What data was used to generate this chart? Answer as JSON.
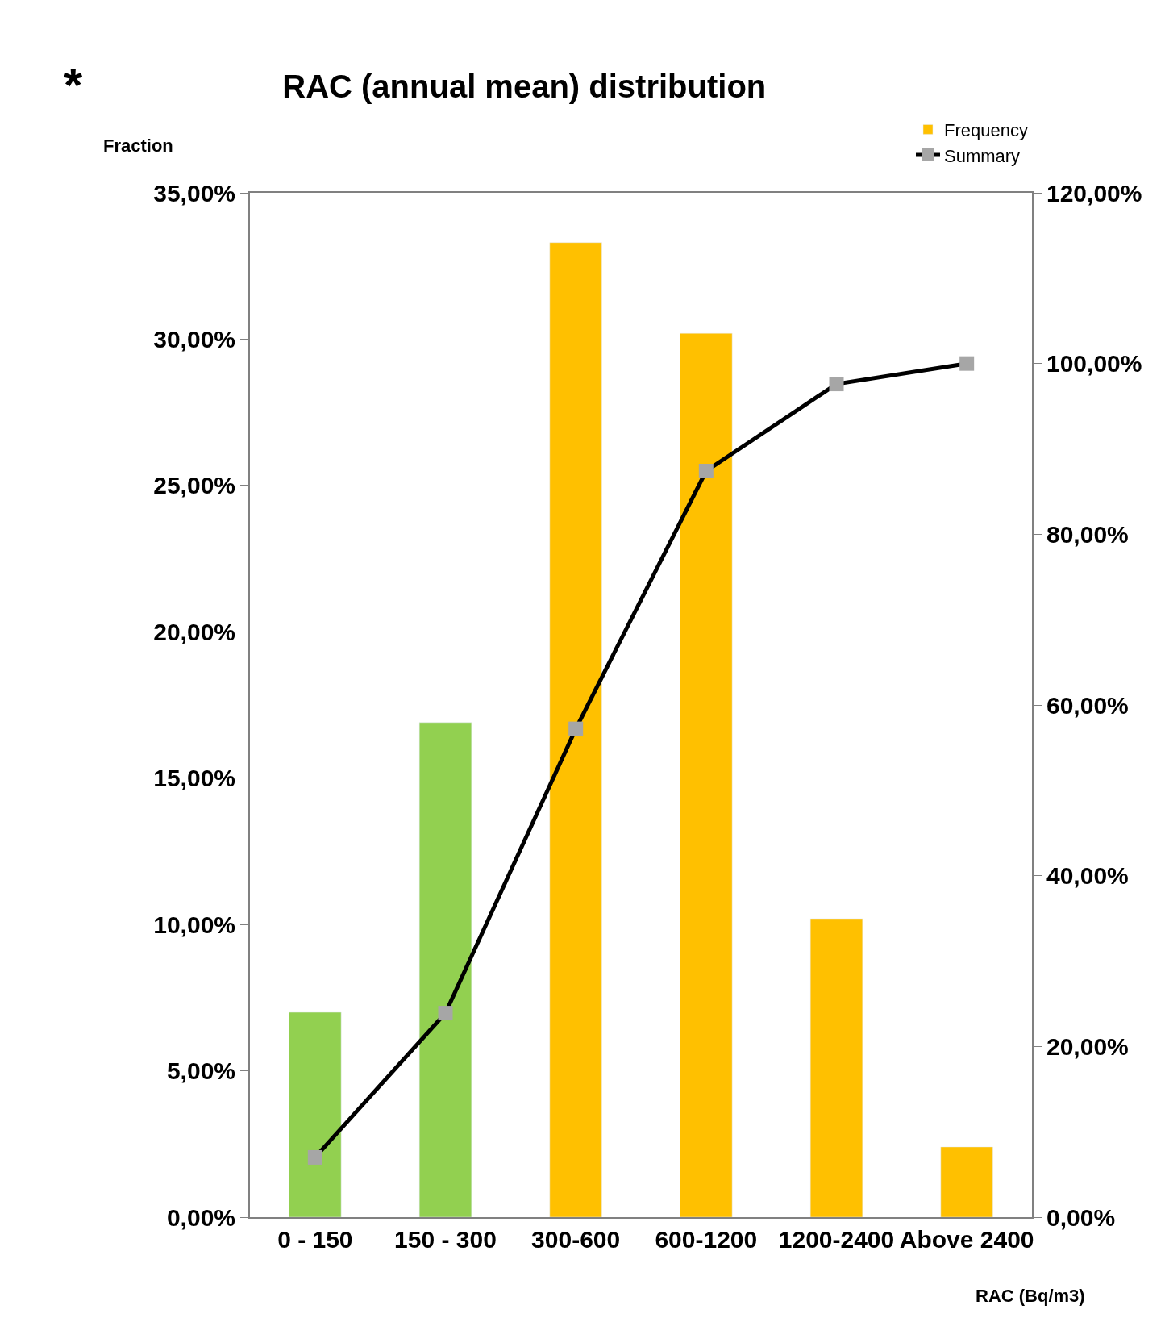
{
  "chart_data": {
    "type": "bar",
    "title": "RAC (annual mean) distribution",
    "ylabel": "Fraction",
    "xlabel": "RAC (Bq/m3)",
    "annotations": [
      "*"
    ],
    "categories": [
      "0 - 150",
      "150 - 300",
      "300-600",
      "600-1200",
      "1200-2400",
      "Above 2400"
    ],
    "series": [
      {
        "name": "Frequency",
        "color": "#ffc000",
        "colors": [
          "#92d050",
          "#92d050",
          "#ffc000",
          "#ffc000",
          "#ffc000",
          "#ffc000"
        ],
        "values": [
          7.0,
          16.9,
          33.3,
          30.2,
          10.2,
          2.4
        ]
      },
      {
        "name": "Summary",
        "type": "line",
        "axis": "y2",
        "color": "#000000",
        "marker": "square",
        "colors": [
          "#a6a6a6",
          "#a6a6a6",
          "#a6a6a6",
          "#a6a6a6",
          "#a6a6a6",
          "#a6a6a6"
        ],
        "values": [
          7.0,
          23.9,
          57.2,
          87.4,
          97.6,
          100
        ]
      }
    ],
    "ylim": [
      0,
      35
    ],
    "yticks": [
      {
        "value": 0,
        "label": "0,00%"
      },
      {
        "value": 5,
        "label": "5,00%"
      },
      {
        "value": 10,
        "label": "10,00%"
      },
      {
        "value": 15,
        "label": "15,00%"
      },
      {
        "value": 20,
        "label": "20,00%"
      },
      {
        "value": 25,
        "label": "25,00%"
      },
      {
        "value": 30,
        "label": "30,00%"
      },
      {
        "value": 35,
        "label": "35,00%"
      }
    ],
    "y2lim": [
      0,
      120
    ],
    "y2ticks": [
      {
        "value": 0,
        "label": "0,00%"
      },
      {
        "value": 20,
        "label": "20,00%"
      },
      {
        "value": 40,
        "label": "40,00%"
      },
      {
        "value": 60,
        "label": "60,00%"
      },
      {
        "value": 80,
        "label": "80,00%"
      },
      {
        "value": 100,
        "label": "100,00%"
      },
      {
        "value": 120,
        "label": "120,00%"
      }
    ],
    "legend": "top right"
  }
}
